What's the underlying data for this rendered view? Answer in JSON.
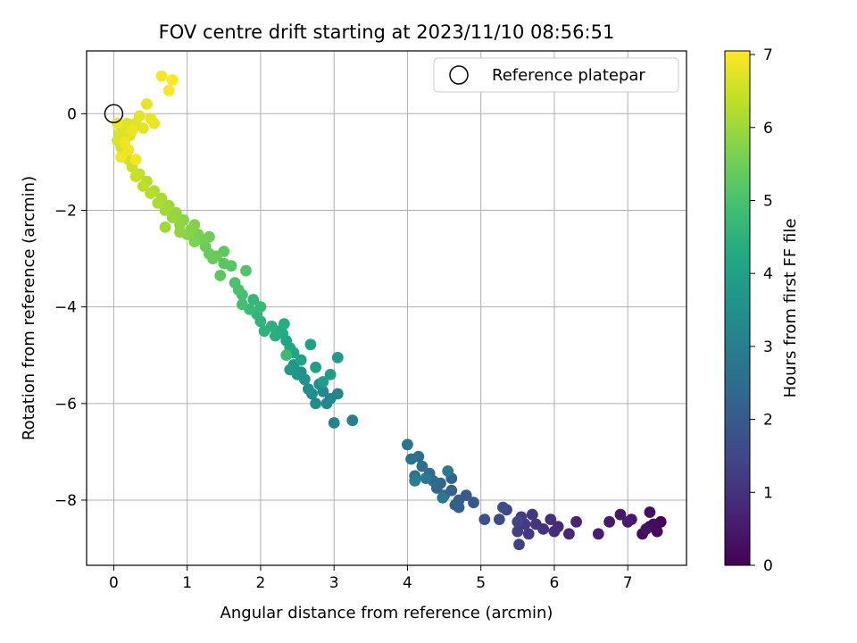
{
  "chart_data": {
    "type": "scatter",
    "title": "FOV centre drift starting at 2023/11/10 08:56:51",
    "xlabel": "Angular distance from reference (arcmin)",
    "ylabel": "Rotation from reference (arcmin)",
    "xlim": [
      -0.37,
      7.8
    ],
    "ylim": [
      -9.35,
      1.3
    ],
    "xticks": [
      0,
      1,
      2,
      3,
      4,
      5,
      6,
      7
    ],
    "yticks": [
      -8,
      -6,
      -4,
      -2,
      0
    ],
    "grid": true,
    "legend": {
      "position": "top-right",
      "entries": [
        "Reference platepar"
      ]
    },
    "reference": {
      "x": 0,
      "y": 0
    },
    "colorbar": {
      "label": "Hours from first FF file",
      "range": [
        0,
        7.05
      ],
      "ticks": [
        0,
        1,
        2,
        3,
        4,
        5,
        6,
        7
      ],
      "colormap": "viridis"
    },
    "series": [
      {
        "points": [
          [
            7.45,
            -8.45,
            0.05
          ],
          [
            7.3,
            -8.55,
            0.1
          ],
          [
            7.4,
            -8.65,
            0.15
          ],
          [
            7.2,
            -8.7,
            0.2
          ],
          [
            7.35,
            -8.5,
            0.25
          ],
          [
            7.3,
            -8.25,
            0.3
          ],
          [
            7.25,
            -8.6,
            0.35
          ],
          [
            7.05,
            -8.4,
            0.4
          ],
          [
            6.9,
            -8.3,
            0.45
          ],
          [
            6.75,
            -8.45,
            0.5
          ],
          [
            7.0,
            -8.45,
            0.55
          ],
          [
            6.6,
            -8.7,
            0.6
          ],
          [
            6.3,
            -8.45,
            0.75
          ],
          [
            6.2,
            -8.7,
            0.8
          ],
          [
            6.05,
            -8.55,
            0.85
          ],
          [
            6.0,
            -8.65,
            0.9
          ],
          [
            5.95,
            -8.4,
            0.95
          ],
          [
            5.85,
            -8.6,
            1.0
          ],
          [
            5.75,
            -8.5,
            1.05
          ],
          [
            5.7,
            -8.3,
            1.1
          ],
          [
            5.65,
            -8.7,
            1.15
          ],
          [
            5.6,
            -8.5,
            1.2
          ],
          [
            5.55,
            -8.35,
            1.25
          ],
          [
            5.5,
            -8.65,
            1.3
          ],
          [
            5.52,
            -8.92,
            1.35
          ],
          [
            5.5,
            -8.45,
            1.4
          ],
          [
            5.35,
            -8.2,
            1.45
          ],
          [
            5.25,
            -8.4,
            1.6
          ],
          [
            5.3,
            -8.15,
            1.7
          ],
          [
            5.05,
            -8.4,
            1.8
          ],
          [
            4.9,
            -8.05,
            1.9
          ],
          [
            4.8,
            -7.9,
            2.0
          ],
          [
            4.7,
            -8.0,
            2.05
          ],
          [
            4.65,
            -8.1,
            2.1
          ],
          [
            4.7,
            -8.15,
            2.15
          ],
          [
            4.6,
            -7.8,
            2.2
          ],
          [
            4.6,
            -7.55,
            2.25
          ],
          [
            4.5,
            -7.9,
            2.3
          ],
          [
            4.45,
            -7.65,
            2.35
          ],
          [
            4.4,
            -7.75,
            2.4
          ],
          [
            4.35,
            -7.6,
            2.45
          ],
          [
            4.3,
            -7.45,
            2.5
          ],
          [
            4.2,
            -7.3,
            2.55
          ],
          [
            4.15,
            -7.1,
            2.6
          ],
          [
            4.1,
            -7.5,
            2.65
          ],
          [
            4.05,
            -7.15,
            2.7
          ],
          [
            4.0,
            -6.85,
            2.75
          ],
          [
            4.48,
            -7.95,
            2.8
          ],
          [
            4.25,
            -7.55,
            2.85
          ],
          [
            4.55,
            -7.4,
            2.9
          ],
          [
            4.1,
            -7.6,
            2.95
          ],
          [
            3.25,
            -6.35,
            3.05
          ],
          [
            3.0,
            -6.4,
            3.1
          ],
          [
            3.05,
            -5.8,
            3.15
          ],
          [
            2.95,
            -5.9,
            3.2
          ],
          [
            2.9,
            -6.0,
            3.25
          ],
          [
            2.85,
            -5.75,
            3.3
          ],
          [
            2.8,
            -5.6,
            3.35
          ],
          [
            2.75,
            -6.0,
            3.4
          ],
          [
            2.7,
            -5.8,
            3.45
          ],
          [
            2.65,
            -5.7,
            3.5
          ],
          [
            2.6,
            -5.5,
            3.55
          ],
          [
            2.55,
            -5.35,
            3.6
          ],
          [
            2.5,
            -5.4,
            3.65
          ],
          [
            2.45,
            -5.2,
            3.7
          ],
          [
            2.4,
            -5.3,
            3.75
          ],
          [
            3.05,
            -5.05,
            3.8
          ],
          [
            2.95,
            -5.4,
            3.85
          ],
          [
            2.85,
            -5.55,
            3.9
          ],
          [
            2.75,
            -5.25,
            3.95
          ],
          [
            2.68,
            -4.78,
            4.0
          ],
          [
            2.55,
            -5.1,
            4.05
          ],
          [
            2.45,
            -4.95,
            4.1
          ],
          [
            2.4,
            -4.85,
            4.15
          ],
          [
            2.35,
            -4.7,
            4.2
          ],
          [
            2.3,
            -4.55,
            4.25
          ],
          [
            2.25,
            -4.5,
            4.3
          ],
          [
            2.32,
            -4.35,
            4.35
          ],
          [
            2.2,
            -4.6,
            4.4
          ],
          [
            2.15,
            -4.4,
            4.45
          ],
          [
            2.05,
            -4.5,
            4.5
          ],
          [
            2.0,
            -4.3,
            4.55
          ],
          [
            1.95,
            -4.15,
            4.6
          ],
          [
            1.9,
            -3.85,
            4.65
          ],
          [
            2.0,
            -4.0,
            4.7
          ],
          [
            1.85,
            -4.05,
            4.75
          ],
          [
            2.35,
            -5.0,
            4.8
          ],
          [
            1.75,
            -3.95,
            4.9
          ],
          [
            1.75,
            -3.75,
            4.95
          ],
          [
            1.7,
            -3.65,
            5.0
          ],
          [
            1.65,
            -3.5,
            5.05
          ],
          [
            1.8,
            -3.25,
            5.1
          ],
          [
            1.6,
            -3.15,
            5.15
          ],
          [
            1.5,
            -3.1,
            5.2
          ],
          [
            1.45,
            -3.35,
            5.25
          ],
          [
            1.5,
            -2.85,
            5.3
          ],
          [
            1.4,
            -2.95,
            5.35
          ],
          [
            1.3,
            -2.9,
            5.4
          ],
          [
            1.25,
            -2.75,
            5.45
          ],
          [
            1.3,
            -2.55,
            5.5
          ],
          [
            1.2,
            -2.6,
            5.55
          ],
          [
            1.15,
            -2.5,
            5.6
          ],
          [
            1.1,
            -2.65,
            5.65
          ],
          [
            1.05,
            -2.4,
            5.7
          ],
          [
            1.0,
            -2.5,
            5.75
          ],
          [
            0.95,
            -2.2,
            5.8
          ],
          [
            0.9,
            -2.3,
            5.85
          ],
          [
            0.85,
            -2.05,
            5.9
          ],
          [
            0.8,
            -2.15,
            5.95
          ],
          [
            0.75,
            -1.9,
            6.0
          ],
          [
            0.7,
            -2.0,
            6.05
          ],
          [
            0.65,
            -1.75,
            6.1
          ],
          [
            0.6,
            -1.85,
            6.15
          ],
          [
            0.55,
            -1.6,
            6.2
          ],
          [
            0.5,
            -1.65,
            6.25
          ],
          [
            0.45,
            -1.4,
            6.3
          ],
          [
            0.4,
            -1.5,
            6.35
          ],
          [
            0.35,
            -1.25,
            6.4
          ],
          [
            0.3,
            -1.3,
            6.45
          ],
          [
            0.25,
            -1.1,
            6.5
          ],
          [
            0.2,
            -0.95,
            6.55
          ],
          [
            0.15,
            -0.8,
            6.6
          ],
          [
            0.1,
            -0.7,
            6.62
          ],
          [
            0.05,
            -0.55,
            6.64
          ],
          [
            0.08,
            -0.4,
            6.66
          ],
          [
            0.12,
            -0.3,
            6.68
          ],
          [
            0.18,
            -0.2,
            6.7
          ],
          [
            0.22,
            -0.45,
            6.72
          ],
          [
            0.3,
            -0.2,
            6.74
          ],
          [
            0.35,
            -0.05,
            6.76
          ],
          [
            0.4,
            -0.3,
            6.78
          ],
          [
            0.45,
            0.2,
            6.8
          ],
          [
            0.5,
            -0.1,
            6.82
          ],
          [
            0.55,
            -0.2,
            6.84
          ],
          [
            0.25,
            -0.35,
            6.86
          ],
          [
            0.15,
            -0.6,
            6.88
          ],
          [
            0.2,
            -0.75,
            6.9
          ],
          [
            0.1,
            -0.9,
            6.92
          ],
          [
            0.3,
            -0.95,
            6.94
          ],
          [
            0.65,
            0.78,
            7.0
          ],
          [
            0.75,
            0.48,
            7.02
          ],
          [
            0.8,
            0.7,
            7.04
          ],
          [
            0.9,
            -2.45,
            5.88
          ],
          [
            1.1,
            -2.3,
            5.72
          ],
          [
            0.7,
            -2.35,
            6.02
          ],
          [
            1.35,
            -3.0,
            5.42
          ],
          [
            0.05,
            -0.2,
            6.9
          ]
        ]
      }
    ]
  }
}
